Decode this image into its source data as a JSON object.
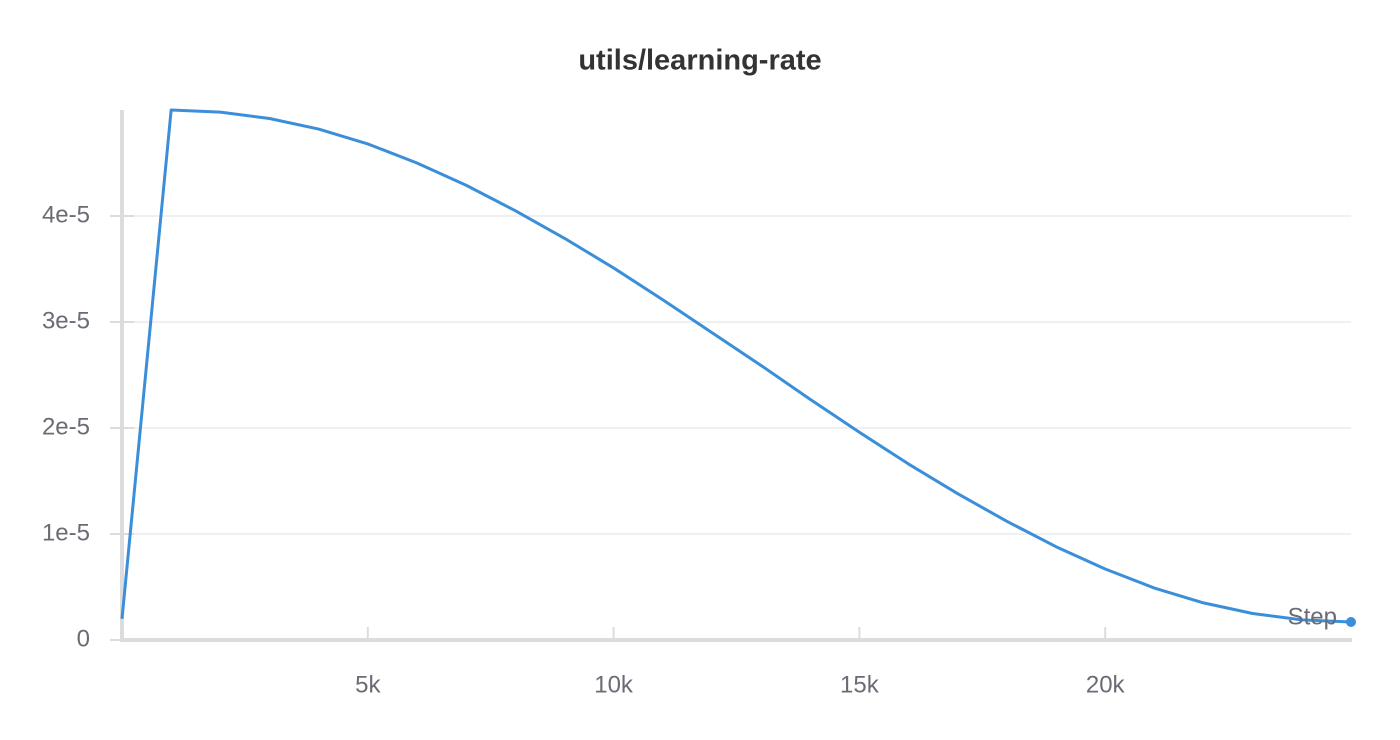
{
  "chart_data": {
    "type": "line",
    "title": "utils/learning-rate",
    "x_label": "Step",
    "x": [
      0,
      1000,
      2000,
      3000,
      4000,
      5000,
      6000,
      7000,
      8000,
      9000,
      10000,
      11000,
      12000,
      13000,
      14000,
      15000,
      16000,
      17000,
      18000,
      19000,
      20000,
      21000,
      22000,
      23000,
      24000,
      25000
    ],
    "series": [
      {
        "color": "#3b8fd9",
        "values": [
          2e-06,
          5e-05,
          4.98e-05,
          4.92e-05,
          4.82e-05,
          4.68e-05,
          4.5e-05,
          4.29e-05,
          4.05e-05,
          3.79e-05,
          3.51e-05,
          3.21e-05,
          2.9e-05,
          2.59e-05,
          2.27e-05,
          1.96e-05,
          1.66e-05,
          1.38e-05,
          1.12e-05,
          8.8e-06,
          6.7e-06,
          4.9e-06,
          3.5e-06,
          2.5e-06,
          1.9e-06,
          1.7e-06
        ]
      }
    ],
    "xlim": [
      0,
      25000
    ],
    "ylim": [
      0,
      5e-05
    ],
    "xticks": [
      {
        "value": 5000,
        "label": "5k"
      },
      {
        "value": 10000,
        "label": "10k"
      },
      {
        "value": 15000,
        "label": "15k"
      },
      {
        "value": 20000,
        "label": "20k"
      }
    ],
    "yticks": [
      0,
      {
        "value": 1e-05,
        "label": "1e-5"
      },
      {
        "value": 2e-05,
        "label": "2e-5"
      },
      {
        "value": 3e-05,
        "label": "3e-5"
      },
      {
        "value": 4e-05,
        "label": "4e-5"
      }
    ],
    "grid": true
  }
}
